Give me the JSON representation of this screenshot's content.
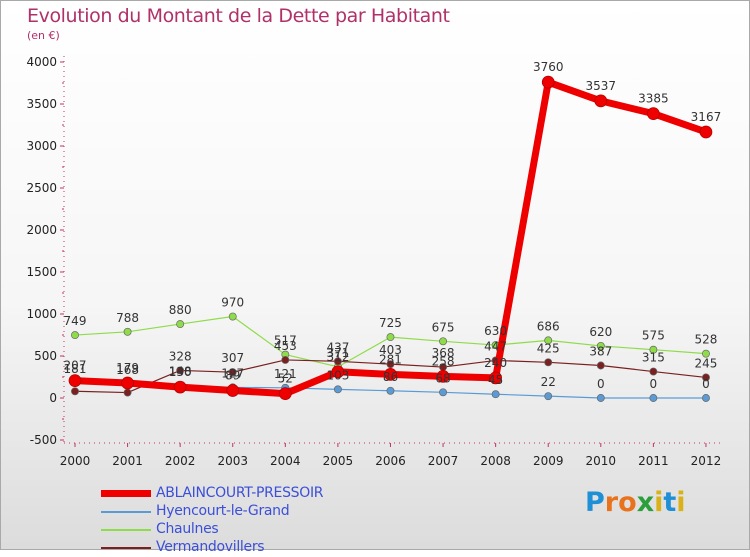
{
  "chart_data": {
    "type": "line",
    "title": "Evolution du Montant de la Dette par Habitant",
    "subtitle": "(en €)",
    "categories": [
      "2000",
      "2001",
      "2002",
      "2003",
      "2004",
      "2005",
      "2006",
      "2007",
      "2008",
      "2009",
      "2010",
      "2011",
      "2012"
    ],
    "ylim": [
      -500,
      4000
    ],
    "yticks": [
      -500,
      0,
      500,
      1000,
      1500,
      2000,
      2500,
      3000,
      3500,
      4000
    ],
    "ytick_labels": [
      "-500",
      "0",
      "500",
      "1000",
      "1500",
      "2000",
      "2500",
      "3000",
      "3500",
      "4000"
    ],
    "grid": false,
    "legend_position": "bottom-left",
    "series": [
      {
        "name": "ABLAINCOURT-PRESSOIR",
        "color": "#ee0000",
        "values": [
          207,
          179,
          130,
          89,
          52,
          312,
          281,
          258,
          240,
          3760,
          3537,
          3385,
          3167
        ],
        "labels": [
          "207",
          "179",
          "130",
          "89",
          "52",
          "312",
          "281",
          "258",
          "240",
          "3760",
          "3537",
          "3385",
          "3167"
        ]
      },
      {
        "name": "Hyencourt-le-Grand",
        "color": "#5b9bd5",
        "values": [
          181,
          168,
          148,
          127,
          121,
          103,
          86,
          68,
          45,
          22,
          0,
          0,
          0
        ],
        "labels": [
          "181",
          "168",
          "148",
          "127",
          "121",
          "103",
          "86",
          "68",
          "45",
          "22",
          "0",
          "0",
          "0"
        ]
      },
      {
        "name": "Chaulnes",
        "color": "#8fdc4a",
        "values": [
          749,
          788,
          880,
          970,
          517,
          371,
          725,
          675,
          630,
          686,
          620,
          575,
          528
        ],
        "labels": [
          "749",
          "788",
          "880",
          "970",
          "517",
          "371",
          "725",
          "675",
          "630",
          "686",
          "620",
          "575",
          "528"
        ]
      },
      {
        "name": "Vermandovillers",
        "color": "#7a2020",
        "values": [
          80,
          65,
          328,
          307,
          453,
          437,
          403,
          368,
          447,
          425,
          387,
          315,
          245
        ],
        "labels": [
          "",
          "",
          "328",
          "307",
          "453",
          "437",
          "403",
          "368",
          "447",
          "425",
          "387",
          "315",
          "245"
        ]
      }
    ]
  },
  "brand": {
    "letters": [
      "P",
      "r",
      "o",
      "x",
      "i",
      "t",
      "i"
    ],
    "colors": [
      "#1f8fd6",
      "#e8731c",
      "#e8731c",
      "#2a9f3c",
      "#d9b21a",
      "#1f8fd6",
      "#d9b21a"
    ]
  }
}
